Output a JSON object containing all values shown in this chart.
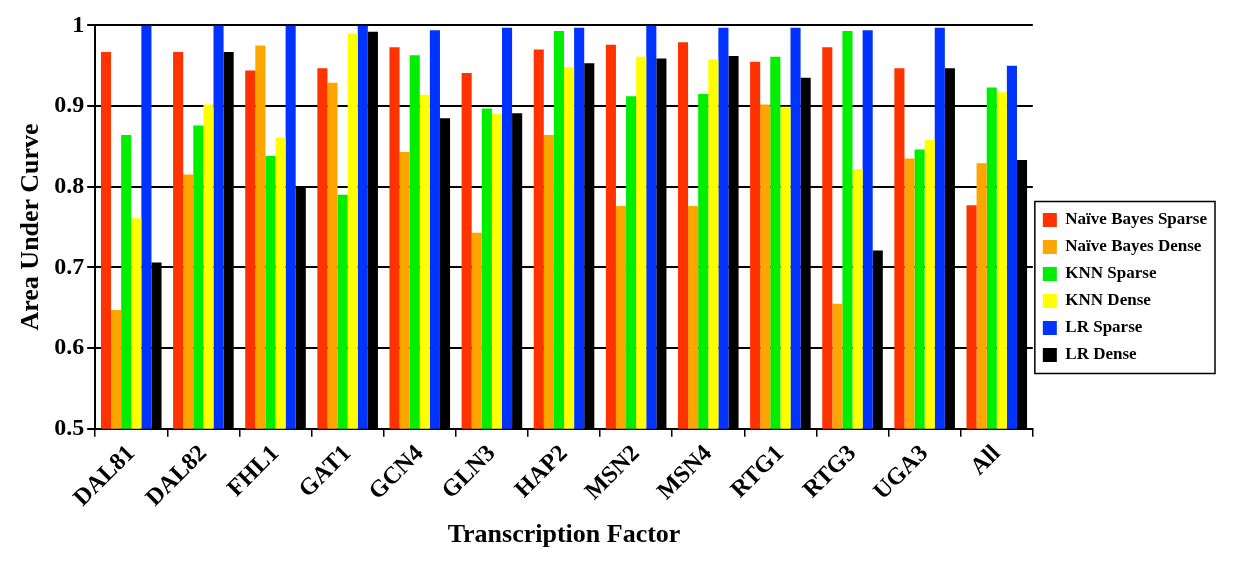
{
  "chart_data": {
    "type": "bar",
    "xlabel": "Transcription Factor",
    "ylabel": "Area Under Curve",
    "categories": [
      "DAL81",
      "DAL82",
      "FHL1",
      "GAT1",
      "GCN4",
      "GLN3",
      "HAP2",
      "MSN2",
      "MSN4",
      "RTG1",
      "RTG3",
      "UGA3",
      "All"
    ],
    "series": [
      {
        "name": "Naïve Bayes Sparse",
        "color": "#ff3300",
        "values": [
          0.967,
          0.967,
          0.944,
          0.947,
          0.973,
          0.941,
          0.97,
          0.976,
          0.979,
          0.955,
          0.973,
          0.947,
          0.777
        ]
      },
      {
        "name": "Naïve Bayes Dense",
        "color": "#ffa500",
        "values": [
          0.647,
          0.815,
          0.975,
          0.929,
          0.843,
          0.743,
          0.864,
          0.776,
          0.776,
          0.902,
          0.655,
          0.835,
          0.829
        ]
      },
      {
        "name": "KNN Sparse",
        "color": "#00ee00",
        "values": [
          0.864,
          0.876,
          0.838,
          0.79,
          0.963,
          0.897,
          0.993,
          0.912,
          0.915,
          0.961,
          0.993,
          0.846,
          0.923
        ]
      },
      {
        "name": "KNN Dense",
        "color": "#ffff00",
        "values": [
          0.761,
          0.902,
          0.861,
          0.99,
          0.914,
          0.89,
          0.948,
          0.961,
          0.958,
          0.899,
          0.822,
          0.858,
          0.917
        ]
      },
      {
        "name": "LR Sparse",
        "color": "#0033ff",
        "values": [
          1.0,
          1.0,
          1.0,
          1.0,
          0.994,
          0.997,
          0.997,
          1.0,
          0.997,
          0.997,
          0.994,
          0.997,
          0.95
        ]
      },
      {
        "name": "LR Dense",
        "color": "#000000",
        "values": [
          0.706,
          0.967,
          0.8,
          0.992,
          0.885,
          0.891,
          0.953,
          0.959,
          0.962,
          0.935,
          0.721,
          0.947,
          0.833
        ]
      }
    ],
    "ylim": [
      0.5,
      1
    ],
    "yticks": [
      0.5,
      0.6,
      0.7,
      0.8,
      0.9,
      1
    ],
    "grid": "y",
    "legend": "right"
  }
}
